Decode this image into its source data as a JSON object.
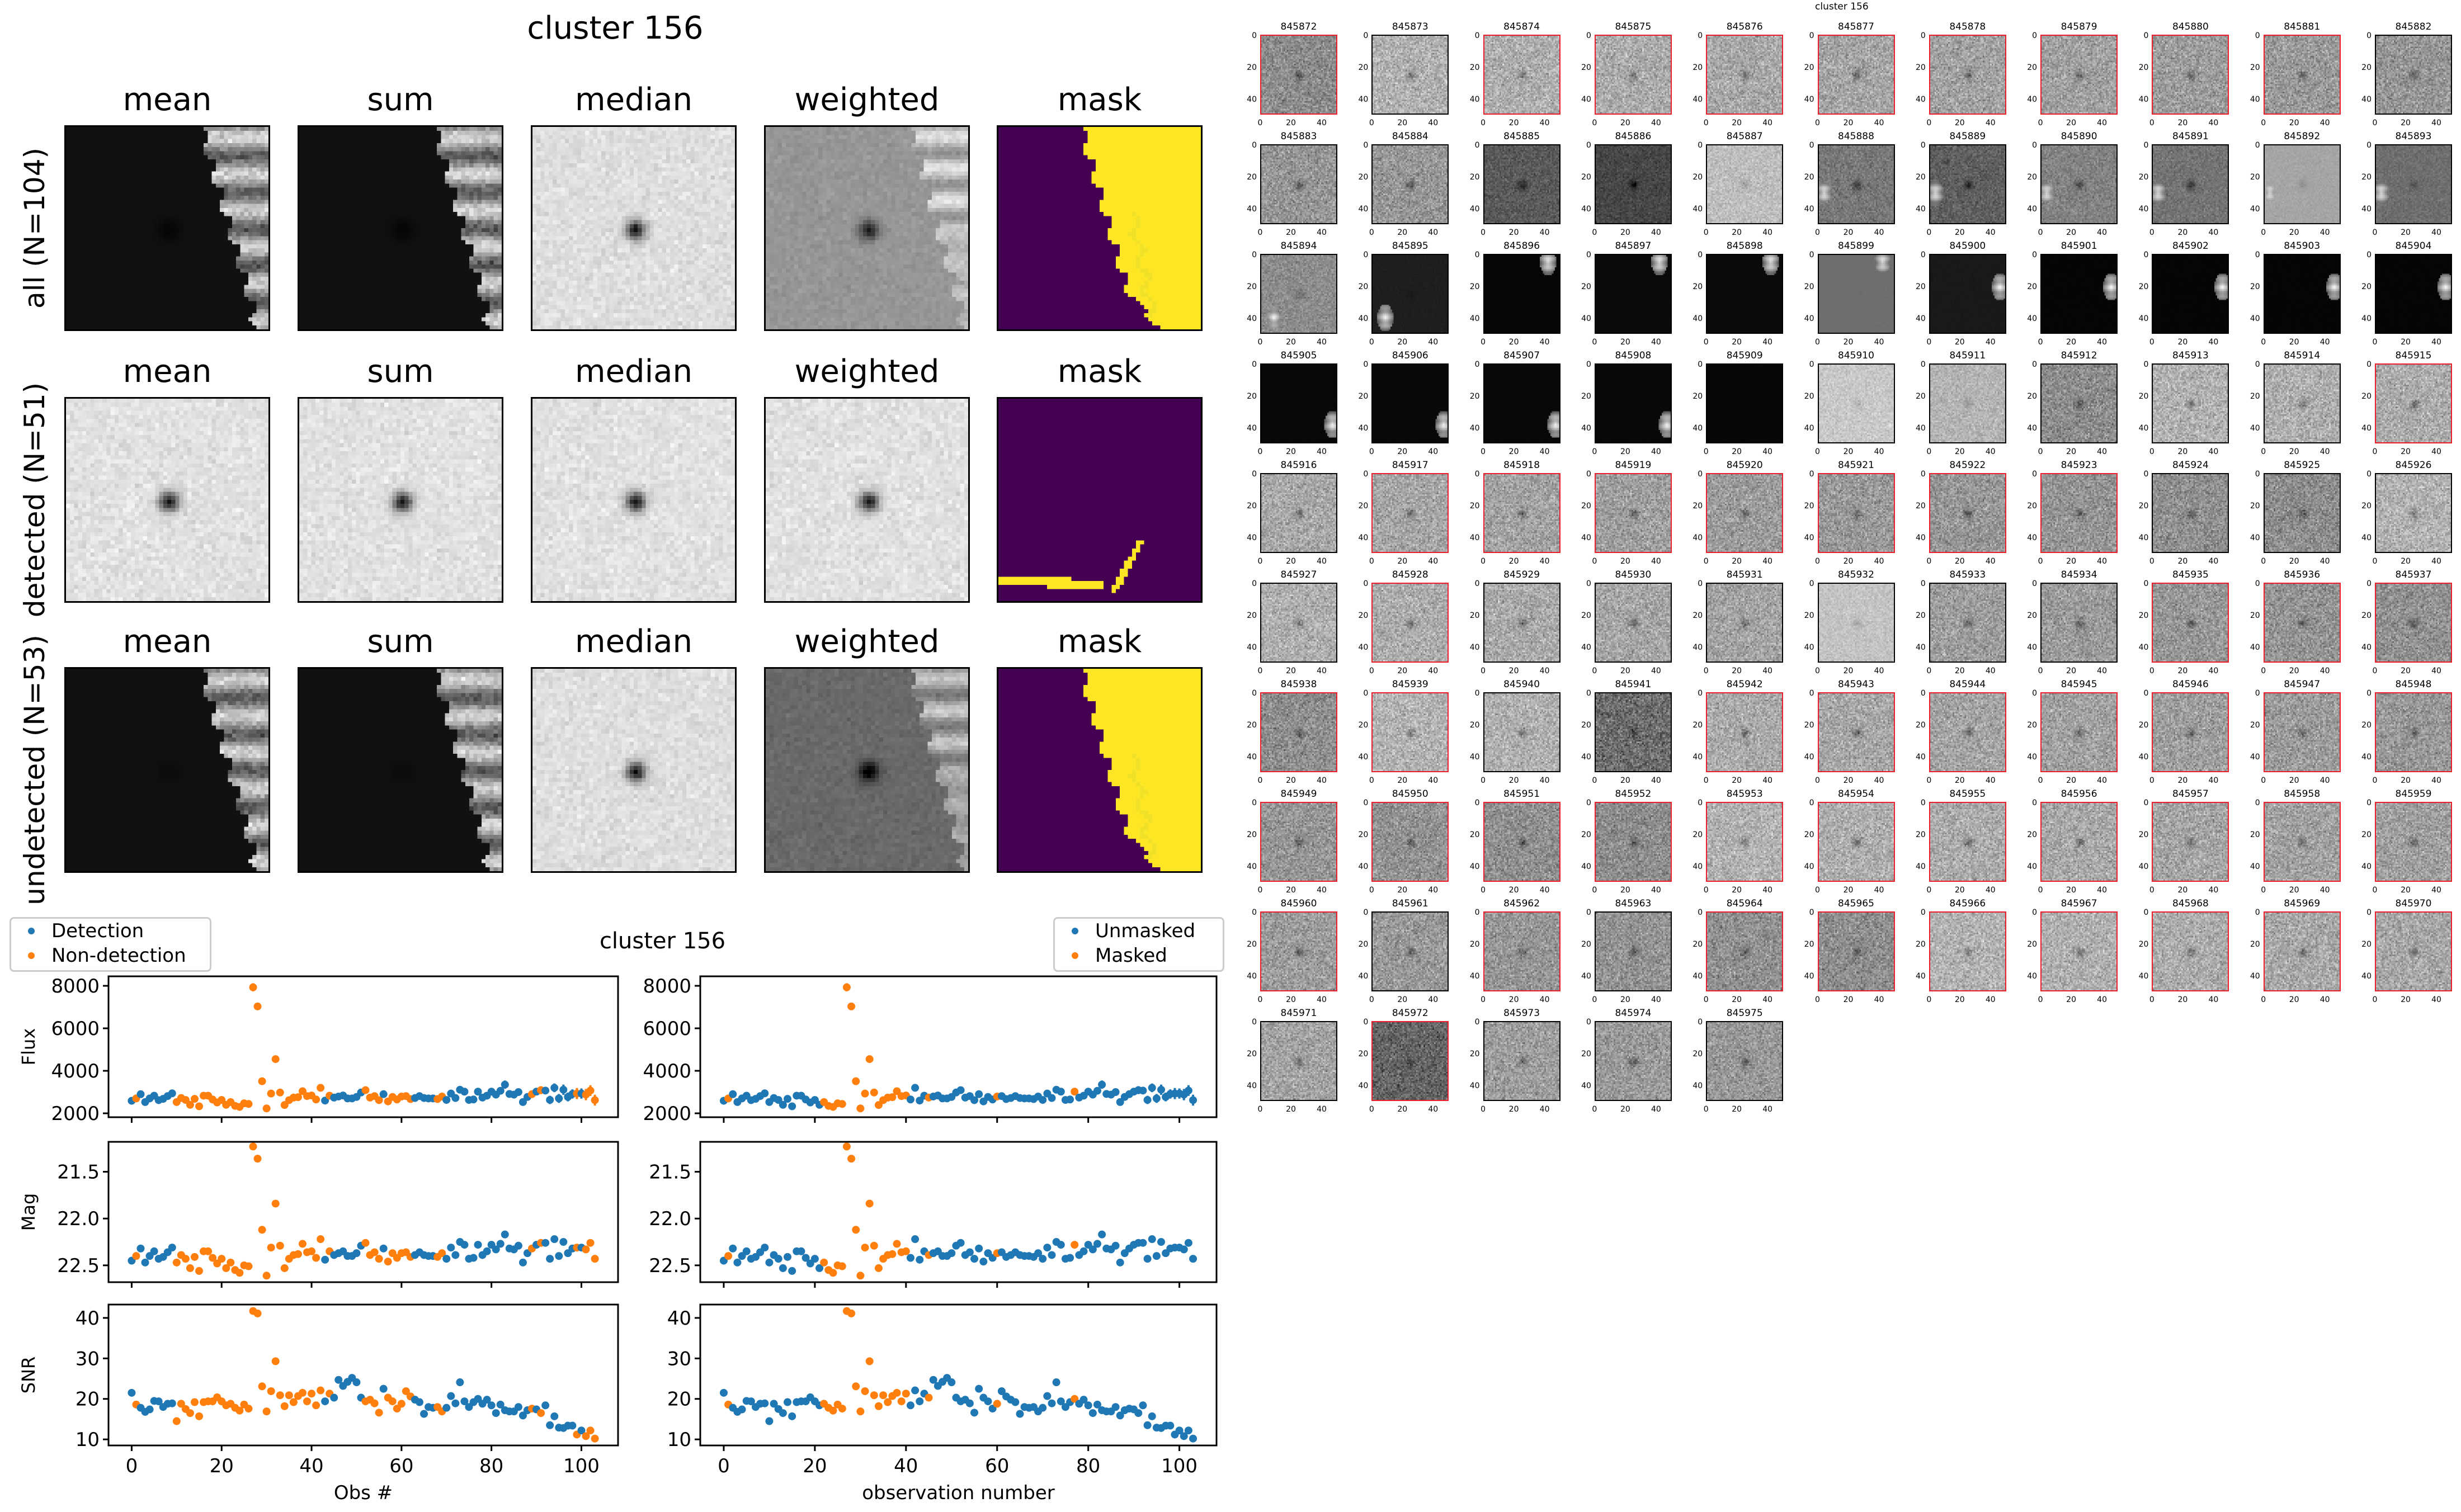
{
  "top_panel": {
    "title": "cluster 156",
    "column_titles": [
      "mean",
      "sum",
      "median",
      "weighted",
      "mask"
    ],
    "row_labels": [
      "all (N=104)",
      "detected (N=51)",
      "undetected (N=53)"
    ]
  },
  "colors": {
    "detection": "#1f77b4",
    "non_detection": "#ff7f0e",
    "mask_low": "#440154",
    "mask_high": "#fde725",
    "detected_border": "#e8202a"
  },
  "chart_data": {
    "type": "scatter",
    "title": "cluster 156",
    "x": "observation index 0..103",
    "xlim": [
      -5.15,
      108.15
    ],
    "x_ticks": [
      "0",
      "20",
      "40",
      "60",
      "80",
      "100"
    ],
    "x_tick_values": [
      0,
      20,
      40,
      60,
      80,
      100
    ],
    "xlabel_left": "Obs #",
    "xlabel_right": "observation number",
    "legend_left": [
      "Detection",
      "Non-detection"
    ],
    "legend_right": [
      "Unmasked",
      "Masked"
    ],
    "legend_left_placement": "top-left",
    "legend_right_placement": "top-right",
    "panels": [
      {
        "key": "flux",
        "ylabel": "Flux",
        "ylim": [
          1816,
          8447
        ],
        "inverted": false,
        "ticks": [
          2000,
          4000,
          6000,
          8000
        ],
        "tick_labels": [
          "2000",
          "4000",
          "6000",
          "8000"
        ]
      },
      {
        "key": "mag",
        "ylabel": "Mag",
        "ylim": [
          21.18,
          22.68
        ],
        "inverted": true,
        "ticks": [
          21.5,
          22.0,
          22.5
        ],
        "tick_labels": [
          "21.5",
          "22.0",
          "22.5"
        ]
      },
      {
        "key": "snr",
        "ylabel": "SNR",
        "ylim": [
          8.5,
          43.3
        ],
        "inverted": false,
        "ticks": [
          10,
          20,
          30,
          40
        ],
        "tick_labels": [
          "10",
          "20",
          "30",
          "40"
        ]
      }
    ],
    "flux": [
      2590,
      2700,
      2900,
      2530,
      2700,
      2830,
      2620,
      2680,
      2810,
      2940,
      2530,
      2720,
      2630,
      2400,
      2680,
      2330,
      2830,
      2830,
      2650,
      2510,
      2630,
      2400,
      2530,
      2350,
      2300,
      2470,
      2440,
      7930,
      7030,
      3510,
      2230,
      2930,
      4550,
      2980,
      2390,
      2620,
      2740,
      2760,
      3040,
      2810,
      2840,
      2650,
      3200,
      2600,
      2830,
      2740,
      2790,
      2840,
      2700,
      2700,
      2770,
      2980,
      3090,
      2740,
      2810,
      2620,
      2900,
      2560,
      2770,
      2650,
      2790,
      2810,
      2670,
      2720,
      2810,
      2720,
      2700,
      2700,
      2670,
      2790,
      2630,
      2930,
      2720,
      3110,
      3020,
      2630,
      2650,
      3020,
      2740,
      2830,
      3020,
      2880,
      3060,
      3350,
      2910,
      2880,
      3000,
      2530,
      2770,
      2900,
      3020,
      3090,
      3070,
      2630,
      3200,
      2700,
      3110,
      2770,
      2910,
      2930,
      2930,
      2880,
      3070,
      2620
    ],
    "mag": [
      22.45,
      22.4,
      22.32,
      22.47,
      22.4,
      22.35,
      22.43,
      22.41,
      22.36,
      22.31,
      22.47,
      22.39,
      22.43,
      22.53,
      22.41,
      22.56,
      22.35,
      22.35,
      22.42,
      22.48,
      22.43,
      22.53,
      22.47,
      22.55,
      22.58,
      22.5,
      22.51,
      21.23,
      21.36,
      22.12,
      22.61,
      22.31,
      21.84,
      22.29,
      22.53,
      22.43,
      22.39,
      22.38,
      22.27,
      22.36,
      22.35,
      22.42,
      22.22,
      22.44,
      22.35,
      22.39,
      22.37,
      22.35,
      22.4,
      22.4,
      22.37,
      22.29,
      22.26,
      22.39,
      22.36,
      22.43,
      22.32,
      22.46,
      22.37,
      22.42,
      22.37,
      22.36,
      22.41,
      22.39,
      22.36,
      22.39,
      22.4,
      22.4,
      22.41,
      22.37,
      22.43,
      22.31,
      22.39,
      22.25,
      22.28,
      22.43,
      22.42,
      22.28,
      22.39,
      22.35,
      22.28,
      22.33,
      22.27,
      22.17,
      22.32,
      22.33,
      22.29,
      22.47,
      22.37,
      22.32,
      22.28,
      22.26,
      22.26,
      22.43,
      22.22,
      22.4,
      22.25,
      22.37,
      22.32,
      22.31,
      22.31,
      22.33,
      22.26,
      22.43
    ],
    "snr": [
      21.5,
      18.6,
      17.8,
      16.8,
      17.4,
      19.5,
      19.4,
      18.0,
      18.8,
      18.9,
      14.5,
      18.8,
      17.5,
      16.5,
      19.2,
      15.7,
      19.2,
      19.4,
      19.4,
      20.4,
      19.4,
      18.4,
      18.8,
      17.8,
      17.1,
      18.6,
      17.6,
      41.7,
      41.1,
      23.1,
      16.9,
      21.9,
      29.3,
      20.9,
      18.2,
      20.9,
      19.2,
      20.7,
      21.5,
      19.4,
      21.3,
      18.4,
      22.1,
      19.4,
      21.3,
      20.3,
      24.7,
      23.2,
      24.2,
      25.2,
      24.1,
      20.3,
      19.4,
      19.8,
      18.9,
      16.6,
      22.5,
      20.3,
      19.4,
      17.6,
      18.8,
      21.9,
      20.6,
      19.8,
      19.2,
      16.3,
      18.0,
      17.8,
      18.0,
      16.9,
      17.8,
      20.7,
      18.9,
      24.1,
      19.4,
      18.0,
      19.2,
      20.0,
      18.8,
      19.8,
      18.4,
      16.5,
      18.6,
      17.2,
      16.9,
      16.9,
      18.0,
      15.9,
      17.2,
      17.6,
      17.4,
      16.5,
      18.4,
      13.5,
      15.7,
      12.9,
      12.8,
      13.4,
      13.4,
      11.2,
      12.2,
      10.8,
      12.2,
      10.2
    ],
    "detected": [
      1,
      0,
      1,
      1,
      1,
      1,
      1,
      1,
      1,
      1,
      0,
      0,
      0,
      0,
      0,
      0,
      0,
      0,
      0,
      0,
      0,
      0,
      0,
      0,
      0,
      0,
      0,
      0,
      0,
      0,
      0,
      0,
      0,
      0,
      0,
      0,
      0,
      0,
      0,
      0,
      0,
      0,
      0,
      1,
      0,
      1,
      1,
      1,
      1,
      1,
      1,
      1,
      0,
      0,
      0,
      0,
      1,
      0,
      0,
      0,
      0,
      0,
      0,
      1,
      1,
      1,
      1,
      1,
      0,
      0,
      1,
      1,
      1,
      1,
      1,
      1,
      1,
      1,
      1,
      1,
      1,
      1,
      1,
      1,
      1,
      1,
      1,
      1,
      1,
      0,
      1,
      0,
      1,
      1,
      1,
      1,
      1,
      1,
      1,
      0,
      1,
      0,
      0,
      0
    ],
    "masked_indices": [
      1,
      22,
      23,
      24,
      25,
      26,
      27,
      28,
      29,
      30,
      31,
      32,
      33,
      34,
      35,
      36,
      37,
      38,
      39,
      40,
      45,
      60,
      77
    ]
  },
  "thumbnail_grid": {
    "title": "cluster 156",
    "first_id": 845872,
    "count": 104,
    "columns": 11,
    "tick_labels": [
      "0",
      "20",
      "40"
    ]
  }
}
